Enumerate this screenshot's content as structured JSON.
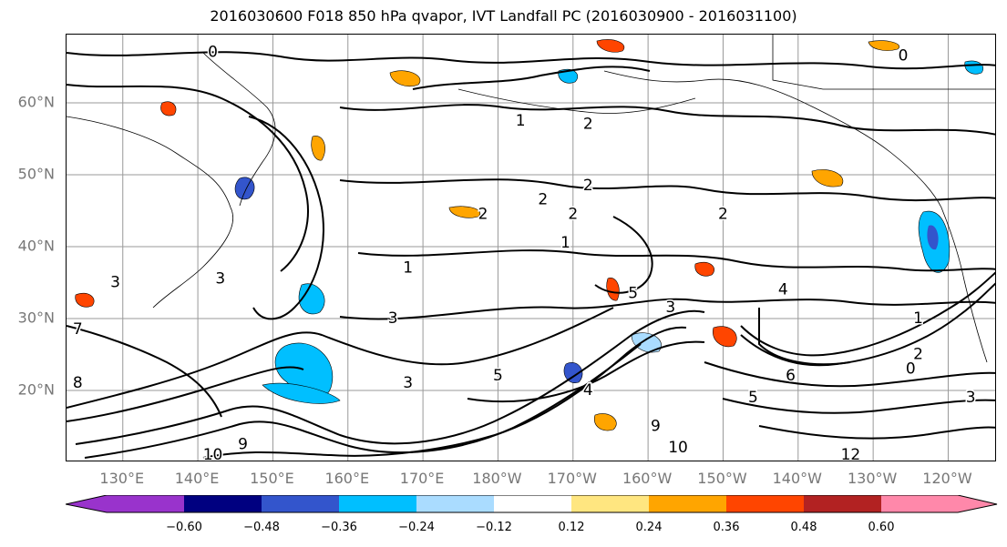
{
  "title": "2016030600 F018 850 hPa qvapor, IVT Landfall PC (2016030900 - 2016031100)",
  "latitudes": [
    {
      "label": "60°N",
      "value": 60
    },
    {
      "label": "50°N",
      "value": 50
    },
    {
      "label": "40°N",
      "value": 40
    },
    {
      "label": "30°N",
      "value": 30
    },
    {
      "label": "20°N",
      "value": 20
    }
  ],
  "longitudes": [
    {
      "label": "130°E",
      "value": 130
    },
    {
      "label": "140°E",
      "value": 140
    },
    {
      "label": "150°E",
      "value": 150
    },
    {
      "label": "160°E",
      "value": 160
    },
    {
      "label": "170°E",
      "value": 170
    },
    {
      "label": "180°W",
      "value": 180
    },
    {
      "label": "170°W",
      "value": 190
    },
    {
      "label": "160°W",
      "value": 200
    },
    {
      "label": "150°W",
      "value": 210
    },
    {
      "label": "140°W",
      "value": 220
    },
    {
      "label": "130°W",
      "value": 230
    },
    {
      "label": "120°W",
      "value": 240
    }
  ],
  "extent": {
    "lon_min": 122.5,
    "lon_max": 246.5,
    "lat_min": 10,
    "lat_max": 69.5
  },
  "colorbar": {
    "colors": [
      "#9933cc",
      "#000080",
      "#3355cc",
      "#00bfff",
      "#aadcff",
      "#ffffff",
      "#ffe680",
      "#ffa500",
      "#ff4500",
      "#b22222",
      "#ff88aa"
    ],
    "ticks": [
      "−0.60",
      "−0.48",
      "−0.36",
      "−0.24",
      "−0.12",
      "0.12",
      "0.24",
      "0.36",
      "0.48",
      "0.60"
    ]
  },
  "contour_labels": [
    {
      "text": "0",
      "lon": 142,
      "lat": 67
    },
    {
      "text": "0",
      "lon": 234,
      "lat": 66.5
    },
    {
      "text": "1",
      "lon": 183,
      "lat": 57.5
    },
    {
      "text": "2",
      "lon": 192,
      "lat": 57
    },
    {
      "text": "2",
      "lon": 192,
      "lat": 48.5
    },
    {
      "text": "2",
      "lon": 178,
      "lat": 44.5
    },
    {
      "text": "2",
      "lon": 190,
      "lat": 44.5
    },
    {
      "text": "2",
      "lon": 210,
      "lat": 44.5
    },
    {
      "text": "2",
      "lon": 186,
      "lat": 46.5
    },
    {
      "text": "1",
      "lon": 189,
      "lat": 40.5
    },
    {
      "text": "1",
      "lon": 168,
      "lat": 37
    },
    {
      "text": "3",
      "lon": 143,
      "lat": 35.5
    },
    {
      "text": "3",
      "lon": 166,
      "lat": 30
    },
    {
      "text": "4",
      "lon": 218,
      "lat": 34
    },
    {
      "text": "5",
      "lon": 198,
      "lat": 33.5
    },
    {
      "text": "3",
      "lon": 203,
      "lat": 31.5
    },
    {
      "text": "1",
      "lon": 236,
      "lat": 30
    },
    {
      "text": "2",
      "lon": 236,
      "lat": 25
    },
    {
      "text": "0",
      "lon": 235,
      "lat": 23
    },
    {
      "text": "3",
      "lon": 243,
      "lat": 19
    },
    {
      "text": "3",
      "lon": 168,
      "lat": 21
    },
    {
      "text": "4",
      "lon": 192,
      "lat": 20
    },
    {
      "text": "5",
      "lon": 180,
      "lat": 22
    },
    {
      "text": "6",
      "lon": 219,
      "lat": 22
    },
    {
      "text": "5",
      "lon": 214,
      "lat": 19
    },
    {
      "text": "9",
      "lon": 201,
      "lat": 15
    },
    {
      "text": "10",
      "lon": 204,
      "lat": 12
    },
    {
      "text": "12",
      "lon": 227,
      "lat": 11
    },
    {
      "text": "10",
      "lon": 142,
      "lat": 11
    },
    {
      "text": "9",
      "lon": 146,
      "lat": 12.5
    },
    {
      "text": "8",
      "lon": 124,
      "lat": 21
    },
    {
      "text": "7",
      "lon": 124,
      "lat": 28.5
    },
    {
      "text": "3",
      "lon": 129,
      "lat": 35
    }
  ]
}
